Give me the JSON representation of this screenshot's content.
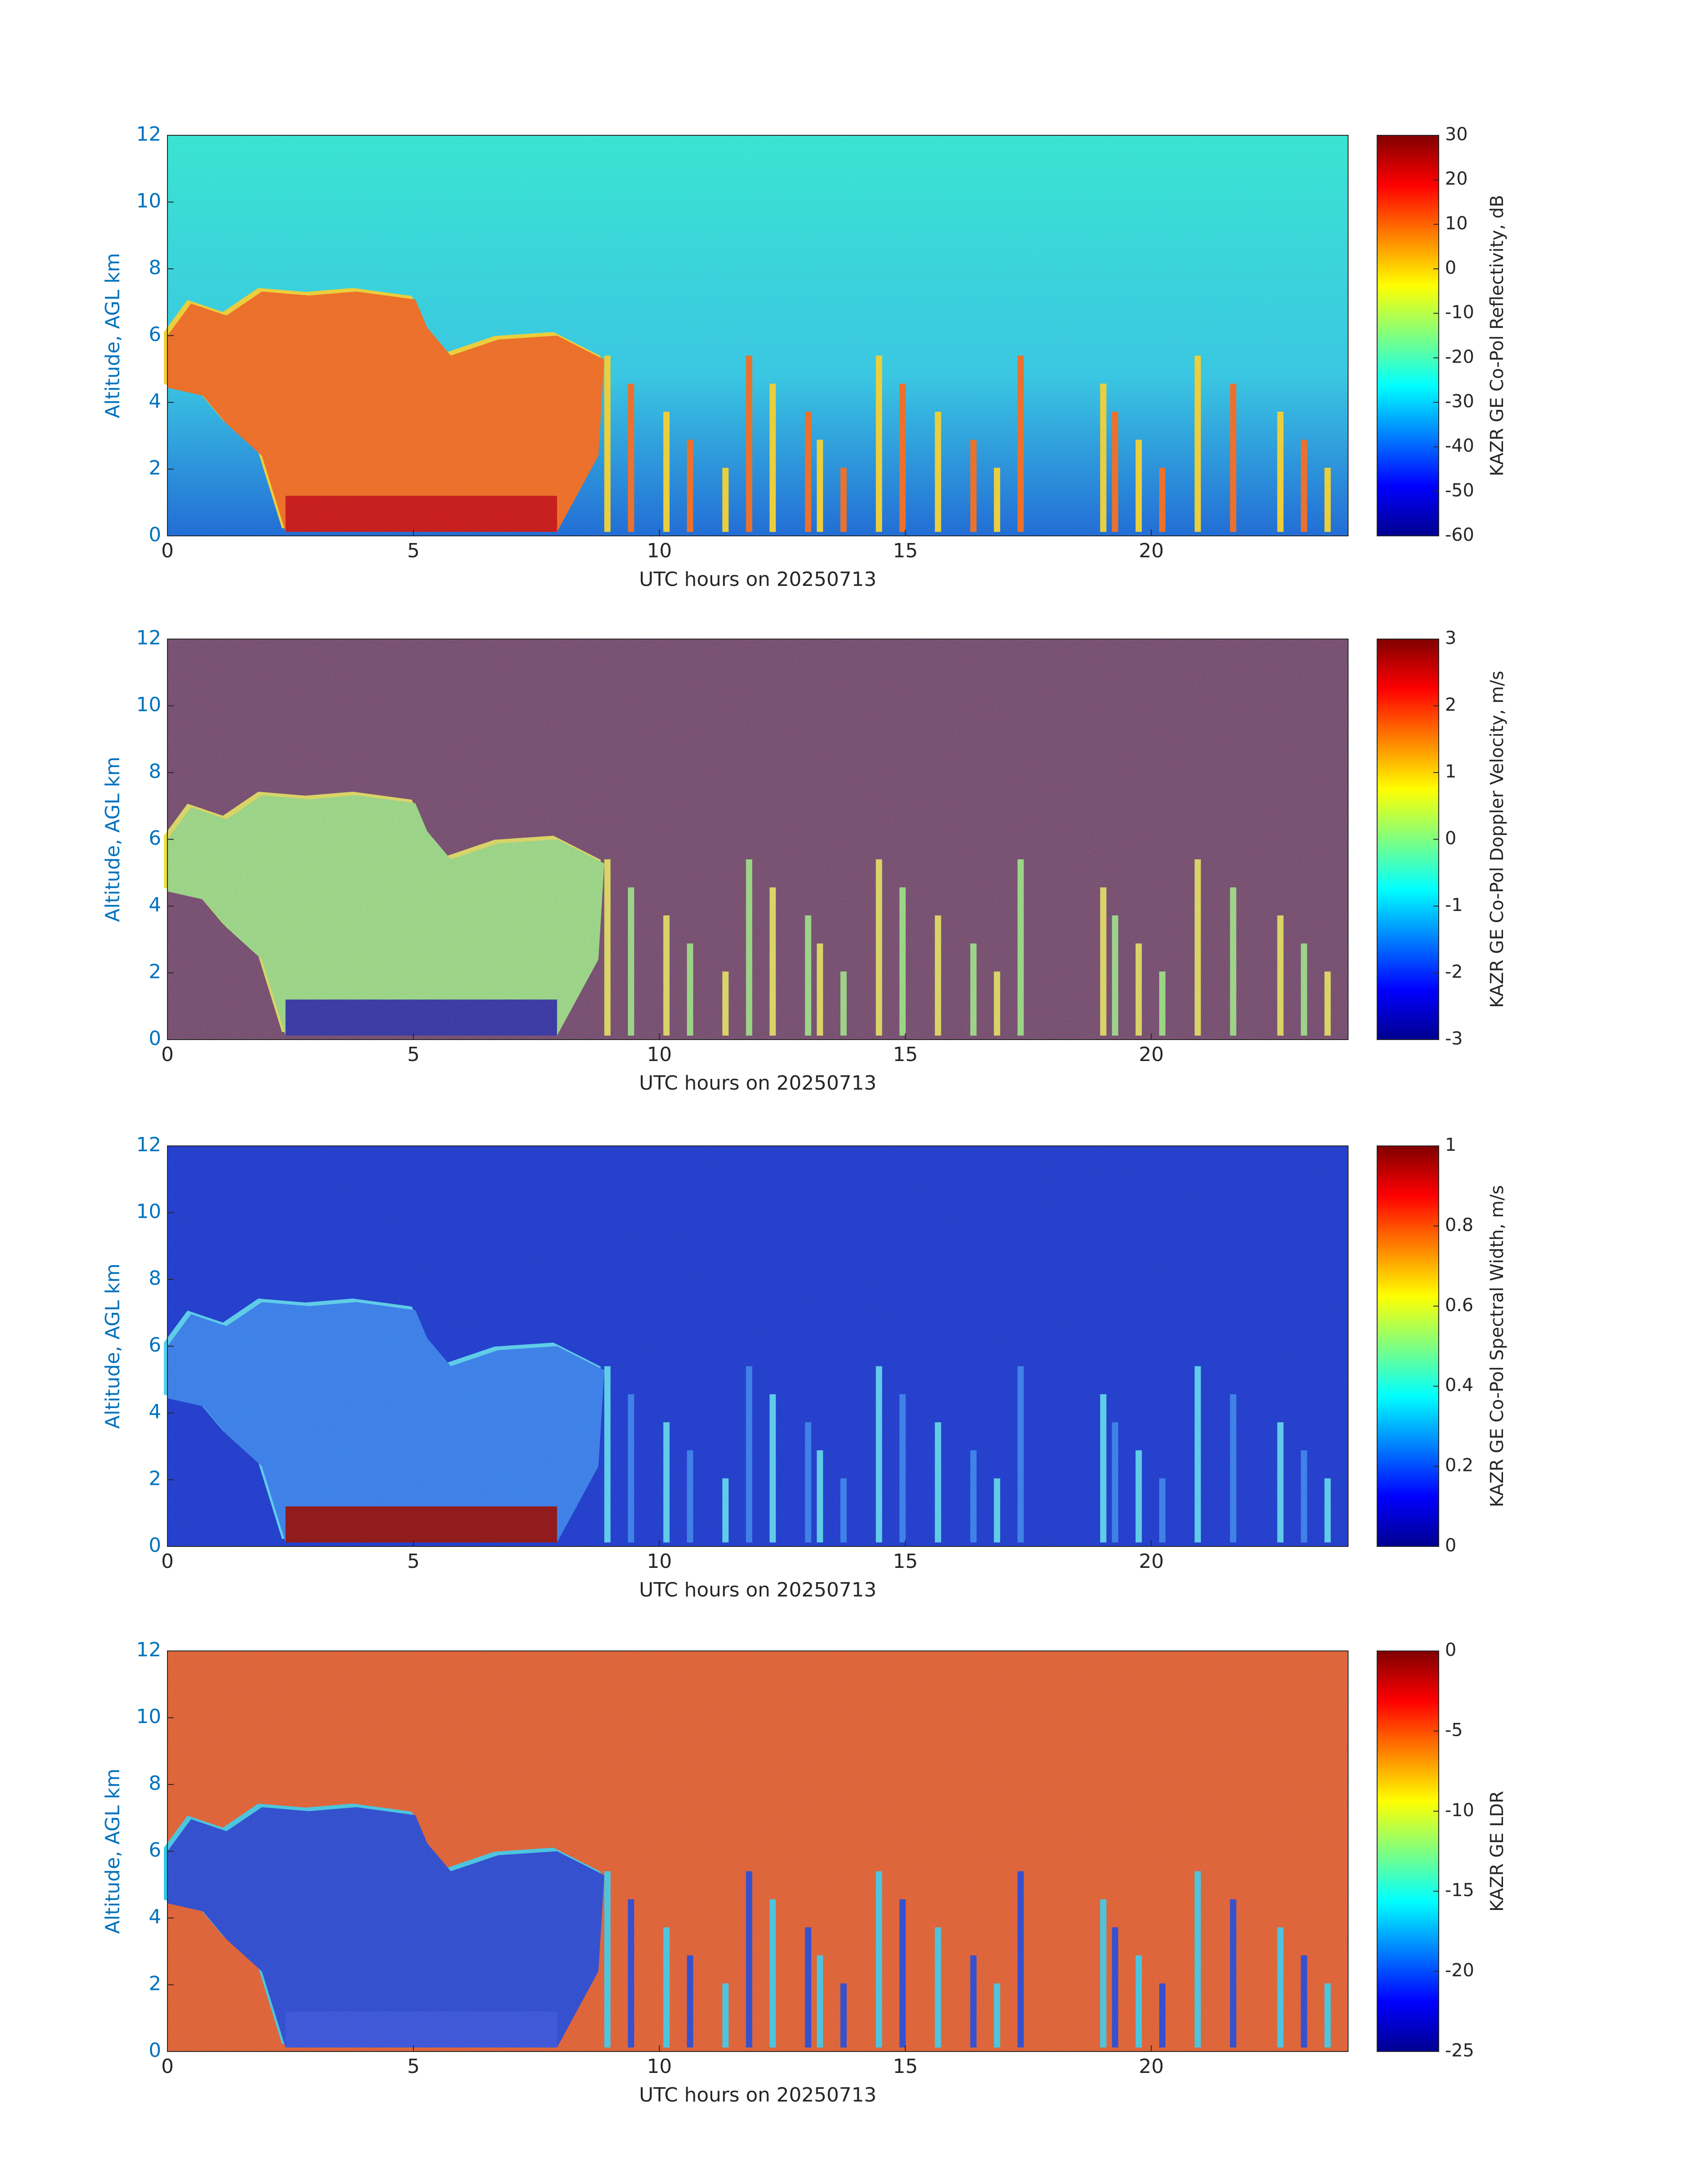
{
  "chart_data": [
    {
      "type": "heatmap",
      "xlabel": "UTC hours on 20250713",
      "ylabel": "Altitude, AGL km",
      "xlim": [
        0,
        24
      ],
      "xticks": [
        0,
        5,
        10,
        15,
        20
      ],
      "ylim": [
        0,
        12
      ],
      "yticks": [
        0,
        2,
        4,
        6,
        8,
        10,
        12
      ],
      "colorbar": {
        "label": "KAZR GE Co-Pol Reflectivity, dB",
        "colormap": "jet",
        "lim": [
          -60,
          30
        ],
        "ticks": [
          -60,
          -50,
          -40,
          -30,
          -20,
          -10,
          0,
          10,
          20,
          30
        ]
      }
    },
    {
      "type": "heatmap",
      "xlabel": "UTC hours on 20250713",
      "ylabel": "Altitude, AGL km",
      "xlim": [
        0,
        24
      ],
      "xticks": [
        0,
        5,
        10,
        15,
        20
      ],
      "ylim": [
        0,
        12
      ],
      "yticks": [
        0,
        2,
        4,
        6,
        8,
        10,
        12
      ],
      "colorbar": {
        "label": "KAZR GE Co-Pol Doppler Velocity, m/s",
        "colormap": "jet",
        "lim": [
          -3,
          3
        ],
        "ticks": [
          -3,
          -2,
          -1,
          0,
          1,
          2,
          3
        ]
      }
    },
    {
      "type": "heatmap",
      "xlabel": "UTC hours on 20250713",
      "ylabel": "Altitude, AGL km",
      "xlim": [
        0,
        24
      ],
      "xticks": [
        0,
        5,
        10,
        15,
        20
      ],
      "ylim": [
        0,
        12
      ],
      "yticks": [
        0,
        2,
        4,
        6,
        8,
        10,
        12
      ],
      "colorbar": {
        "label": "KAZR GE Co-Pol Spectral Width, m/s",
        "colormap": "jet",
        "lim": [
          0,
          1
        ],
        "ticks": [
          0,
          0.2,
          0.4,
          0.6,
          0.8,
          1
        ]
      }
    },
    {
      "type": "heatmap",
      "xlabel": "UTC hours on 20250713",
      "ylabel": "Altitude, AGL km",
      "xlim": [
        0,
        24
      ],
      "xticks": [
        0,
        5,
        10,
        15,
        20
      ],
      "ylim": [
        0,
        12
      ],
      "yticks": [
        0,
        2,
        4,
        6,
        8,
        10,
        12
      ],
      "colorbar": {
        "label": "KAZR GE LDR",
        "colormap": "jet",
        "lim": [
          -25,
          0
        ],
        "ticks": [
          -25,
          -20,
          -15,
          -10,
          -5,
          0
        ]
      }
    }
  ]
}
